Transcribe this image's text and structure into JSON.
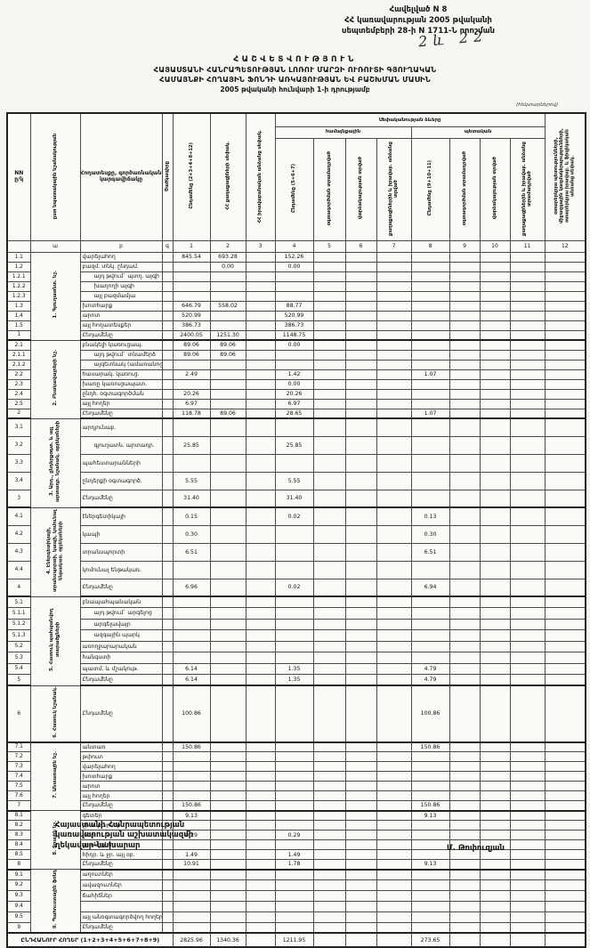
{
  "appendix": {
    "line1": "Հավելված N 8",
    "line2": "ՀՀ կառավարության 2005 թվականի",
    "line3": "սեպտեմբերի 28-ի N 1711-Ն որոշման"
  },
  "handwritten_mark": "2և 22",
  "title": {
    "line0": "ՀԱՇՎԵՏՎՈՒԹՅՈՒՆ",
    "line1": "ՀԱՅԱՍՏԱՆԻ ՀԱՆՐԱՊԵՏՈՒԹՅԱՆ ԼՈՌՈՒ ՄԱՐԶԻ ՈՒՌՈՒՏԻ ԳՅՈՒՂԱԿԱՆ",
    "line2": "ՀԱՄԱՅՆՔԻ ՀՈՂԱՅԻՆ ՖՈՆԴԻ ԱՌԿԱՅՈՒԹՅԱՆ ԵՎ ԲԱՇԽՄԱՆ ՄԱՍԻՆ",
    "line3": "2005 թվականի հունվարի 1-ի դրությամբ"
  },
  "unit_note": "(հեկտարներով)",
  "table": {
    "corner": {
      "nn": "NN\nը/կ",
      "section": "ըստ նպատակային նշանակության",
      "landtype": "Հողատեսքը, գործառնական\nկարգավիճակը",
      "code": "Ծածկագիրը"
    },
    "group_headers": {
      "ownership": "Սեփականության ձևերը",
      "community": "համայնքային",
      "state": "պետական"
    },
    "col_headers": {
      "c1": "Ընդամենը (2+3+4+8+12)",
      "c2": "ՀՀ քաղաքացիների սեփակ.",
      "c3": "ՀՀ իրավաբանական անձանց սեփակ.",
      "c4": "Ընդամենը (5+6+7)",
      "c5": "օգտագործման տրամադրված",
      "c6": "վարձակալության տրված",
      "c7": "քաղաքացիներին և իրավաբ. անձանց տրված",
      "c8": "Ընդամենը (9+10+11)",
      "c9": "օգտագործման տրամադրված",
      "c10": "վարձակալության տրված",
      "c11": "քաղաքացիներին և իրավաբ. անձանց տրամադրված",
      "c12": "օտարերկրյա պետությունների, միջազգային կազմակերպությունների, օտարերկրյա իրավաբ. և ֆիզիկական անձանց սեփակ."
    },
    "index_row": [
      "",
      "ա",
      "բ",
      "գ",
      "1",
      "2",
      "3",
      "4",
      "5",
      "6",
      "7",
      "8",
      "9",
      "10",
      "11",
      "12"
    ],
    "sections": [
      {
        "label": "1. Գյուղատնտ. նշ.",
        "rows": [
          {
            "num": "1.1",
            "label": "վարելահող",
            "c1": "845.54",
            "c2": "693.28",
            "c4": "152.26"
          },
          {
            "num": "1.2",
            "label": "բազմ. տնկ. ընդամ.",
            "c2": "0.00",
            "c4": "0.00"
          },
          {
            "num": "1.2.1",
            "label": "այդ թվում` պտղ. այգի",
            "indent": true
          },
          {
            "num": "1.2.2",
            "label": "խաղողի այգի",
            "indent": true
          },
          {
            "num": "1.2.3",
            "label": "այլ բազմամյա",
            "indent": true
          },
          {
            "num": "1.3",
            "label": "խոտհարք",
            "c1": "646.79",
            "c2": "558.02",
            "c4": "88.77"
          },
          {
            "num": "1.4",
            "label": "արոտ",
            "c1": "520.99",
            "c4": "520.99"
          },
          {
            "num": "1.5",
            "label": "այլ հողատեսքեր",
            "c1": "386.73",
            "c4": "386.73"
          },
          {
            "num": "1",
            "label": "Ընդամենը",
            "c1": "2400.05",
            "c2": "1251.30",
            "c4": "1148.75"
          }
        ]
      },
      {
        "label": "2. Բնակավայրերի նշ.",
        "rows": [
          {
            "num": "2.1",
            "label": "բնակելի կառուցապ.",
            "c1": "89.06",
            "c2": "89.06",
            "c4": "0.00"
          },
          {
            "num": "2.1.1",
            "label": "այդ թվում` տնամերձ",
            "indent": true,
            "c1": "89.06",
            "c2": "89.06"
          },
          {
            "num": "2.1.2",
            "label": "այգետնակ (ամառանոց)",
            "indent": true
          },
          {
            "num": "2.2",
            "label": "հասարակ. կառուց.",
            "c1": "2.49",
            "c4": "1.42",
            "c8": "1.07"
          },
          {
            "num": "2.3",
            "label": "խառը կառուցապատ.",
            "c4": "0.00"
          },
          {
            "num": "2.4",
            "label": "ընդհ. օգտագործման",
            "c1": "20.26",
            "c4": "20.26"
          },
          {
            "num": "2.5",
            "label": "այլ հողեր",
            "c1": "6.97",
            "c4": "6.97"
          },
          {
            "num": "2",
            "label": "Ընդամենը",
            "c1": "118.78",
            "c2": "89.06",
            "c4": "28.65",
            "c8": "1.07"
          }
        ]
      },
      {
        "label": "3. Արդ., ընդերքօգտ. և այլ արտադր. նշանակ. օբյեկտների",
        "rows": [
          {
            "num": "3.1",
            "label": "արդյունաբ."
          },
          {
            "num": "3.2",
            "label": "գյուղատն. արտադր.",
            "indent": true,
            "c1": "25.85",
            "c4": "25.85"
          },
          {
            "num": "3.3",
            "label": "պահեստարանների"
          },
          {
            "num": "3.4",
            "label": "ընդերքի օգտագործ.",
            "c1": "5.55",
            "c4": "5.55"
          },
          {
            "num": "3",
            "label": "Ընդամենը",
            "c1": "31.40",
            "c4": "31.40"
          }
        ]
      },
      {
        "label": "4. Էներգետիկայի, տրանսպորտի, կապի, կոմունալ ենթակառ. օբյեկտների",
        "rows": [
          {
            "num": "4.1",
            "label": "էներգետիկայի",
            "c1": "0.15",
            "c4": "0.02",
            "c8": "0.13"
          },
          {
            "num": "4.2",
            "label": "կապի",
            "c1": "0.30",
            "c8": "0.30"
          },
          {
            "num": "4.3",
            "label": "տրանսպորտի",
            "c1": "6.51",
            "c8": "6.51"
          },
          {
            "num": "4.4",
            "label": "կոմունալ ենթակառ."
          },
          {
            "num": "4",
            "label": "Ընդամենը",
            "c1": "6.96",
            "c4": "0.02",
            "c8": "6.94"
          }
        ]
      },
      {
        "label": "5. Հատուկ պահպանվող տարածքների",
        "rows": [
          {
            "num": "5.1",
            "label": "բնապահպանական"
          },
          {
            "num": "5.1.1",
            "label": "այդ թվում` արգելոց",
            "indent": true
          },
          {
            "num": "5.1.2",
            "label": "արգելավայր",
            "indent": true
          },
          {
            "num": "5.1.3",
            "label": "ազգային պարկ",
            "indent": true
          },
          {
            "num": "5.2",
            "label": "առողջարարական"
          },
          {
            "num": "5.3",
            "label": "հանգստի"
          },
          {
            "num": "5.4",
            "label": "պատմ. և մշակութ.",
            "c1": "6.14",
            "c4": "1.35",
            "c8": "4.79"
          },
          {
            "num": "5",
            "label": "Ընդամենը",
            "c1": "6.14",
            "c4": "1.35",
            "c8": "4.79"
          }
        ]
      },
      {
        "label": "6. Հատուկ նշանակ.",
        "rows": [
          {
            "num": "6",
            "label": "Ընդամենը",
            "tall": true,
            "c1": "100.86",
            "c8": "100.86"
          }
        ]
      },
      {
        "label": "7. Անտառային նշ.",
        "rows": [
          {
            "num": "7.1",
            "label": "անտառ",
            "c1": "150.86",
            "c8": "150.86"
          },
          {
            "num": "7.2",
            "label": "թփուտ"
          },
          {
            "num": "7.3",
            "label": "վարելահող"
          },
          {
            "num": "7.4",
            "label": "խոտհարք"
          },
          {
            "num": "7.5",
            "label": "արոտ"
          },
          {
            "num": "7.6",
            "label": "այլ հողեր"
          },
          {
            "num": "7",
            "label": "Ընդամենը",
            "c1": "150.86",
            "c8": "150.86"
          }
        ]
      },
      {
        "label": "8. Ջրային նշ.",
        "rows": [
          {
            "num": "8.1",
            "label": "գետեր",
            "c1": "9.13",
            "c8": "9.13"
          },
          {
            "num": "8.2",
            "label": "ջրամբարներ"
          },
          {
            "num": "8.3",
            "label": "լճեր",
            "c1": "0.29",
            "c4": "0.29"
          },
          {
            "num": "8.4",
            "label": "ջրանցքներ"
          },
          {
            "num": "8.5",
            "label": "հիդր. և ջր. այլ օբ.",
            "c1": "1.49",
            "c4": "1.49"
          },
          {
            "num": "8",
            "label": "Ընդամենը",
            "c1": "10.91",
            "c4": "1.78",
            "c8": "9.13"
          }
        ]
      },
      {
        "label": "9. Պահուստային ֆոնդ",
        "rows": [
          {
            "num": "9.1",
            "label": "աղուտներ"
          },
          {
            "num": "9.2",
            "label": "ավազուտներ"
          },
          {
            "num": "9.3",
            "label": "ճահիճներ"
          },
          {
            "num": "9.4",
            "label": ""
          },
          {
            "num": "9.5",
            "label": "այլ անօգտագործվող հողեր"
          },
          {
            "num": "9",
            "label": "Ընդամենը"
          }
        ]
      }
    ],
    "grand_total": {
      "label": "ԸՆԴՀԱՆՈՒՐ ՀՈՂԵՐ (1+2+3+4+5+6+7+8+9)",
      "c1": "2825.96",
      "c2": "1340.36",
      "c4": "1211.95",
      "c8": "273.65"
    }
  },
  "footer": {
    "line1": "Հայաստանի Հանրապետության",
    "line2": "կառավարության աշխատակազմի",
    "line3": "ղեկավար-նախարար",
    "signature": "Մ. Թոփուզյան"
  }
}
